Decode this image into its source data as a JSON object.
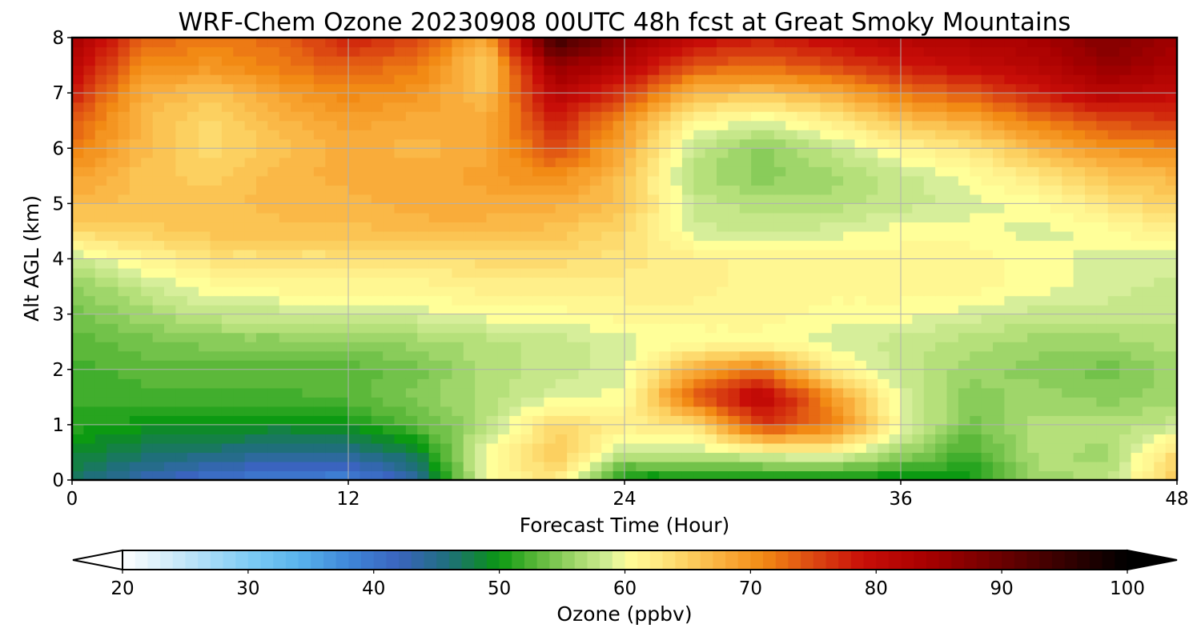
{
  "chart_data": {
    "type": "heatmap",
    "title": "WRF-Chem Ozone  20230908 00UTC 48h fcst at Great Smoky Mountains",
    "xlabel": "Forecast Time (Hour)",
    "ylabel": "Alt AGL (km)",
    "xlim": [
      0,
      48
    ],
    "ylim": [
      0,
      8
    ],
    "x_ticks": [
      "0",
      "12",
      "24",
      "36",
      "48"
    ],
    "y_ticks": [
      "0",
      "1",
      "2",
      "3",
      "4",
      "5",
      "6",
      "7",
      "8"
    ],
    "grid": true,
    "x": [
      0,
      3,
      6,
      9,
      12,
      15,
      18,
      21,
      24,
      27,
      30,
      33,
      36,
      39,
      42,
      45,
      48
    ],
    "y": [
      0,
      0.5,
      1,
      1.5,
      2,
      2.5,
      3,
      3.5,
      4,
      4.5,
      5,
      5.5,
      6,
      6.5,
      7,
      7.5,
      8
    ],
    "z": [
      [
        47,
        43,
        40,
        39,
        38,
        44,
        60,
        63,
        49,
        49,
        49,
        49,
        49,
        50,
        56,
        57,
        66
      ],
      [
        49,
        47,
        46,
        45,
        45,
        48,
        60,
        66,
        58,
        58,
        60,
        61,
        56,
        52,
        57,
        56,
        64
      ],
      [
        51,
        50,
        50,
        49,
        50,
        53,
        57,
        64,
        62,
        63,
        76,
        72,
        60,
        54,
        57,
        57,
        58
      ],
      [
        52,
        52,
        52,
        52,
        53,
        55,
        57,
        59,
        60,
        74,
        82,
        70,
        59,
        55,
        56,
        55,
        56
      ],
      [
        52,
        53,
        53,
        53,
        53,
        54,
        57,
        58,
        59,
        68,
        72,
        62,
        58,
        56,
        55,
        54,
        56
      ],
      [
        53,
        54,
        55,
        55,
        55,
        56,
        57,
        58,
        59,
        60,
        60,
        59,
        58,
        57,
        56,
        56,
        57
      ],
      [
        54,
        56,
        58,
        58,
        59,
        59,
        60,
        60,
        61,
        61,
        61,
        60,
        60,
        59,
        58,
        58,
        58
      ],
      [
        55,
        58,
        60,
        61,
        61,
        61,
        62,
        62,
        62,
        62,
        61,
        61,
        61,
        61,
        60,
        59,
        58
      ],
      [
        58,
        61,
        63,
        63,
        63,
        63,
        64,
        64,
        63,
        62,
        61,
        61,
        61,
        61,
        60,
        59,
        59
      ],
      [
        64,
        65,
        66,
        66,
        66,
        67,
        67,
        66,
        64,
        59,
        58,
        59,
        60,
        60,
        59,
        60,
        62
      ],
      [
        67,
        66,
        66,
        67,
        67,
        68,
        68,
        68,
        66,
        58,
        57,
        57,
        58,
        59,
        60,
        63,
        65
      ],
      [
        69,
        66,
        65,
        67,
        68,
        68,
        69,
        71,
        66,
        57,
        55,
        56,
        58,
        60,
        63,
        66,
        67
      ],
      [
        72,
        67,
        64,
        66,
        68,
        67,
        68,
        75,
        68,
        58,
        55,
        58,
        61,
        63,
        67,
        70,
        71
      ],
      [
        74,
        67,
        64,
        67,
        69,
        68,
        68,
        78,
        70,
        61,
        59,
        62,
        66,
        68,
        72,
        75,
        76
      ],
      [
        78,
        68,
        66,
        69,
        71,
        70,
        66,
        82,
        76,
        67,
        66,
        68,
        72,
        74,
        78,
        82,
        80
      ],
      [
        81,
        71,
        70,
        72,
        74,
        72,
        65,
        86,
        82,
        74,
        73,
        75,
        78,
        80,
        82,
        86,
        83
      ],
      [
        84,
        74,
        72,
        73,
        78,
        75,
        68,
        95,
        86,
        80,
        78,
        80,
        82,
        83,
        84,
        88,
        85
      ]
    ],
    "colorbar": {
      "label": "Ozone  (ppbv)",
      "min": 20,
      "max": 100,
      "ticks": [
        "20",
        "30",
        "40",
        "50",
        "60",
        "70",
        "80",
        "90",
        "100"
      ],
      "extend": "both",
      "orientation": "horizontal"
    },
    "colormap": [
      [
        20,
        "#ffffff"
      ],
      [
        24,
        "#cfeaf8"
      ],
      [
        30,
        "#7fcdf5"
      ],
      [
        34,
        "#59b4ec"
      ],
      [
        38,
        "#3f86d8"
      ],
      [
        42,
        "#3a64bf"
      ],
      [
        46,
        "#1f6f7a"
      ],
      [
        49,
        "#0e8a2a"
      ],
      [
        50,
        "#0c9a12"
      ],
      [
        53,
        "#5cb83a"
      ],
      [
        57,
        "#b5e07a"
      ],
      [
        59,
        "#d6ee9a"
      ],
      [
        60,
        "#ffff99"
      ],
      [
        62,
        "#ffef8a"
      ],
      [
        65,
        "#fcd060"
      ],
      [
        68,
        "#f9ac3a"
      ],
      [
        71,
        "#f28a14"
      ],
      [
        75,
        "#dc4812"
      ],
      [
        79,
        "#c80e08"
      ],
      [
        84,
        "#a80000"
      ],
      [
        90,
        "#6a0000"
      ],
      [
        95,
        "#350000"
      ],
      [
        100,
        "#000000"
      ]
    ]
  }
}
